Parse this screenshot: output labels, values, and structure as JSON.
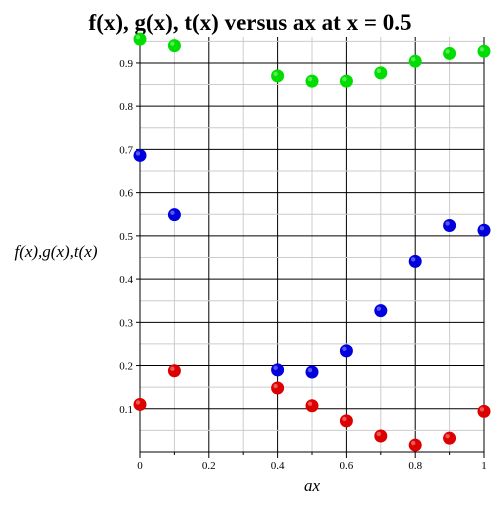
{
  "chart_data": {
    "type": "scatter",
    "title": "f(x), g(x), t(x) versus ax at x = 0.5",
    "xlabel": "ax",
    "ylabel": "f(x),g(x),t(x)",
    "xlim": [
      0,
      1
    ],
    "ylim": [
      0,
      0.96
    ],
    "grid": true,
    "legend": "none",
    "x_ticks": [
      "0",
      "0.2",
      "0.4",
      "0.6",
      "0.8",
      "1"
    ],
    "y_ticks": [
      "0.1",
      "0.2",
      "0.3",
      "0.4",
      "0.5",
      "0.6",
      "0.7",
      "0.8",
      "0.9"
    ],
    "x": [
      0,
      0.1,
      0.4,
      0.5,
      0.6,
      0.7,
      0.8,
      0.9,
      1.0
    ],
    "series": [
      {
        "color": "#00dd00",
        "values": [
          0.955,
          0.94,
          0.87,
          0.858,
          0.858,
          0.877,
          0.904,
          0.922,
          0.927
        ]
      },
      {
        "color": "#0000dd",
        "values": [
          0.686,
          0.549,
          0.19,
          0.185,
          0.234,
          0.327,
          0.441,
          0.524,
          0.513
        ]
      },
      {
        "color": "#dd0000",
        "values": [
          0.11,
          0.188,
          0.148,
          0.107,
          0.072,
          0.037,
          0.016,
          0.032,
          0.094
        ]
      }
    ]
  }
}
